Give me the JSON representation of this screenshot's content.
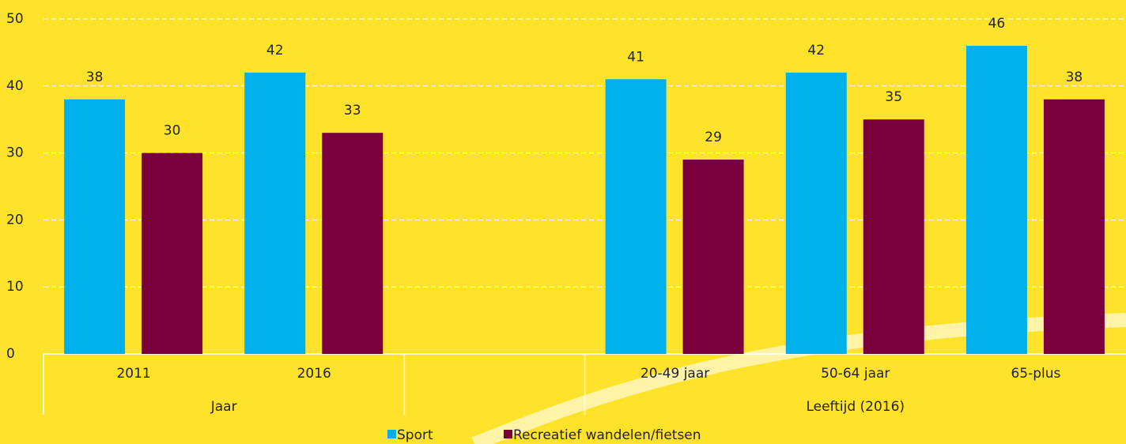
{
  "chart_data": {
    "type": "bar",
    "categories": [
      "2011",
      "2016",
      null,
      "20-49 jaar",
      "50-64 jaar",
      "65-plus"
    ],
    "group_labels": [
      "Jaar",
      "Leeftijd (2016)"
    ],
    "series": [
      {
        "name": "Sport",
        "color": "#00b0eb",
        "values": [
          38,
          42,
          null,
          41,
          42,
          46
        ]
      },
      {
        "name": "Recreatief wandelen/fietsen",
        "color": "#7a003c",
        "values": [
          30,
          33,
          null,
          29,
          35,
          38
        ]
      }
    ],
    "ylim": [
      0,
      50
    ],
    "yticks": [
      0,
      10,
      20,
      30,
      40,
      50
    ],
    "grid": true
  }
}
